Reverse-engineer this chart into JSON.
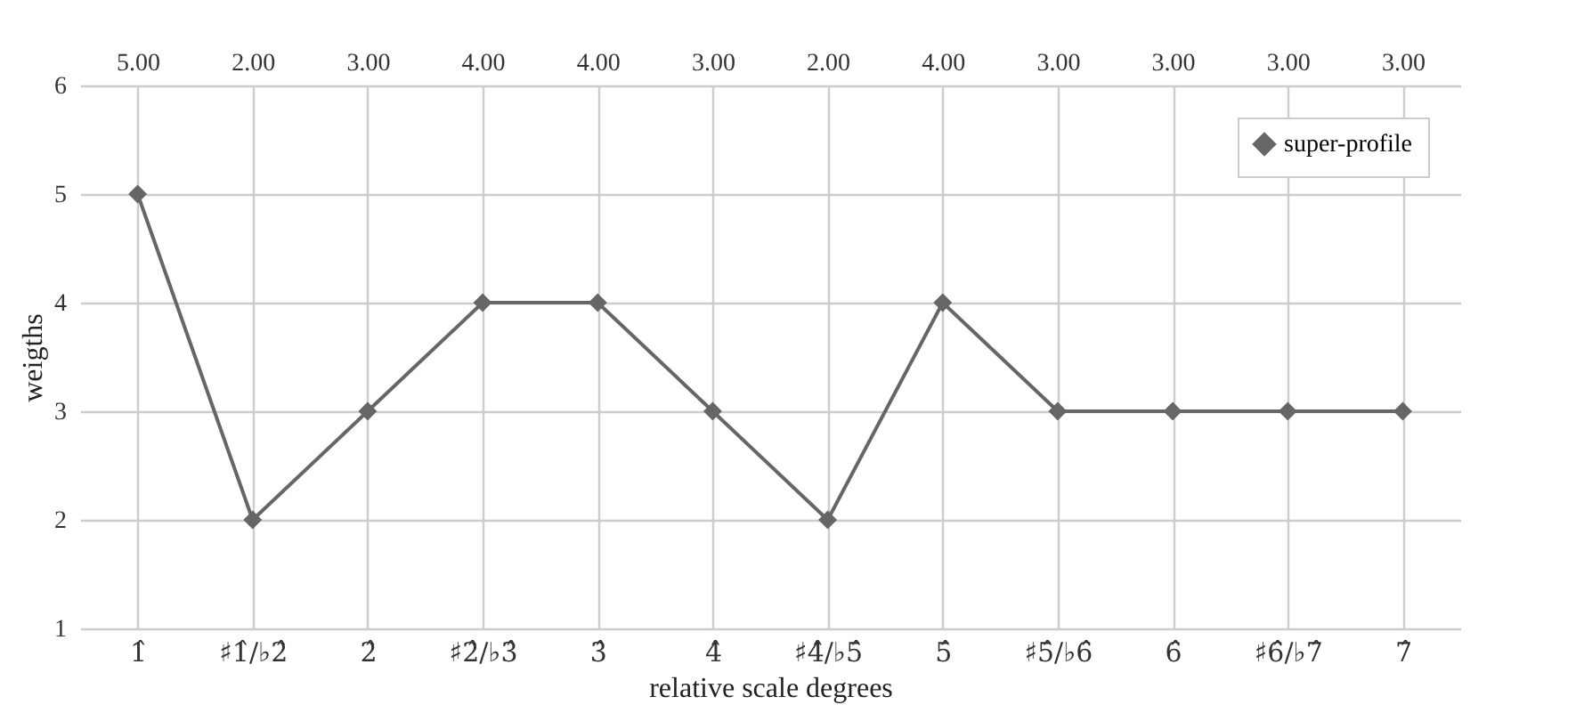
{
  "chart_data": {
    "type": "line",
    "xlabel": "relative scale degrees",
    "ylabel": "weigths",
    "categories": [
      "1̂",
      "♯1̂/♭2̂",
      "2̂",
      "♯2̂/♭3̂",
      "3̂",
      "4̂",
      "♯4̂/♭5̂",
      "5̂",
      "♯5̂/♭6̂",
      "6̂",
      "♯6̂/♭7̂",
      "7̂"
    ],
    "series": [
      {
        "name": "super-profile",
        "color": "#666666",
        "values": [
          5,
          2,
          3,
          4,
          4,
          3,
          2,
          4,
          3,
          3,
          3,
          3
        ]
      }
    ],
    "annotations": [
      "5.00",
      "2.00",
      "3.00",
      "4.00",
      "4.00",
      "3.00",
      "2.00",
      "4.00",
      "3.00",
      "3.00",
      "3.00",
      "3.00"
    ],
    "ylim": [
      1,
      6
    ],
    "yticks": [
      1,
      2,
      3,
      4,
      5,
      6
    ],
    "grid": true,
    "legend": "top right",
    "marker": "diamond",
    "line_style": "solid"
  }
}
